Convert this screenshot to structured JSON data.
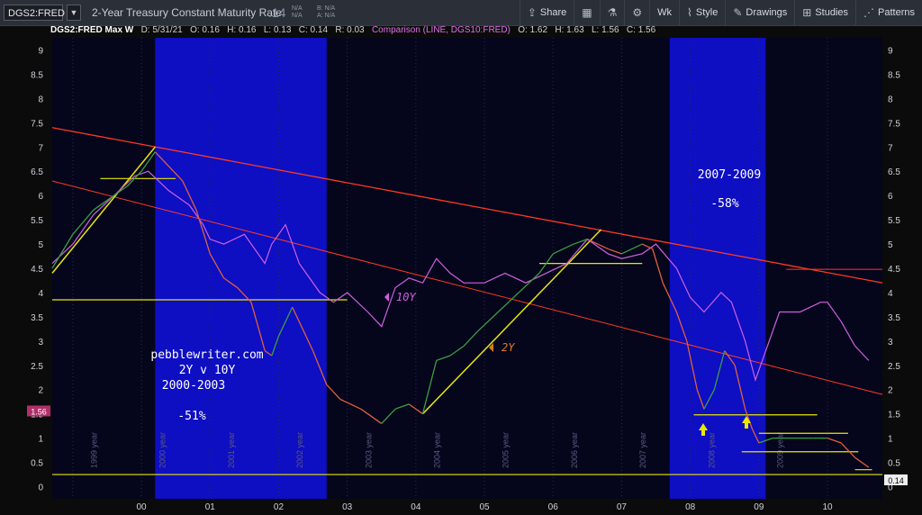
{
  "toolbar": {
    "symbol": "DGS2:FRED",
    "description": "2-Year Treasury Constant Maturity Rate",
    "last": ".14",
    "quote_lines": [
      "N/A",
      "N/A"
    ],
    "quote_lines2": [
      "B: N/A",
      "A: N/A"
    ],
    "buttons": {
      "share": "Share",
      "period": "Wk",
      "style": "Style",
      "drawings": "Drawings",
      "studies": "Studies",
      "patterns": "Patterns"
    }
  },
  "infobar": {
    "main": "DGS2:FRED Max W",
    "date": "D: 5/31/21",
    "open": "O: 0.16",
    "high": "H: 0.16",
    "low": "L: 0.13",
    "close": "C: 0.14",
    "range": "R: 0.03",
    "comparison": "Comparison (LINE, DGS10:FRED)",
    "c_open": "O: 1.62",
    "c_high": "H: 1.63",
    "c_low": "L: 1.56",
    "c_close": "C: 1.56"
  },
  "colors": {
    "background": "#05051c",
    "recession": "#1010e0",
    "trend_red": "#ff3a20",
    "support_yellow": "#e8e800",
    "series_2y": "#e0603a",
    "series_10y": "#d060e0",
    "series_2y_up": "#3aa040"
  },
  "chart_data": {
    "type": "line",
    "title": "",
    "ylim": [
      -0.25,
      9.25
    ],
    "x_ticks": [
      "00",
      "01",
      "02",
      "03",
      "04",
      "05",
      "06",
      "07",
      "08",
      "09",
      "10"
    ],
    "y_ticks": [
      "0",
      "0.5",
      "1",
      "1.5",
      "2",
      "2.5",
      "3",
      "3.5",
      "4",
      "4.5",
      "5",
      "5.5",
      "6",
      "6.5",
      "7",
      "7.5",
      "8",
      "8.5",
      "9"
    ],
    "year_labels": [
      "1999 year",
      "2000 year",
      "2001 year",
      "2002 year",
      "2003 year",
      "2004 year",
      "2005 year",
      "2006 year",
      "2007 year",
      "2008 year",
      "2009 year"
    ],
    "recession_shading": [
      [
        2000.2,
        2002.7
      ],
      [
        2007.7,
        2009.1
      ]
    ],
    "price_badge_left": "1.56",
    "price_badge_right": "0.14",
    "series": [
      {
        "name": "2Y",
        "x": [
          1998.7,
          1999.0,
          1999.3,
          1999.5,
          1999.8,
          2000.0,
          2000.2,
          2000.4,
          2000.6,
          2000.8,
          2001.0,
          2001.2,
          2001.4,
          2001.6,
          2001.8,
          2001.9,
          2002.0,
          2002.2,
          2002.5,
          2002.7,
          2002.9,
          2003.2,
          2003.4,
          2003.5,
          2003.7,
          2003.9,
          2004.1,
          2004.3,
          2004.5,
          2004.7,
          2004.9,
          2005.2,
          2005.5,
          2005.8,
          2006.0,
          2006.3,
          2006.5,
          2006.8,
          2007.0,
          2007.3,
          2007.45,
          2007.6,
          2007.8,
          2007.95,
          2008.1,
          2008.2,
          2008.35,
          2008.5,
          2008.65,
          2008.8,
          2008.9,
          2009.0,
          2009.2,
          2009.5,
          2009.8,
          2010.0,
          2010.2,
          2010.4,
          2010.6
        ],
        "y": [
          4.5,
          5.2,
          5.7,
          5.9,
          6.2,
          6.5,
          6.9,
          6.6,
          6.3,
          5.7,
          4.8,
          4.3,
          4.1,
          3.8,
          2.8,
          2.7,
          3.1,
          3.7,
          2.8,
          2.1,
          1.8,
          1.6,
          1.4,
          1.3,
          1.6,
          1.7,
          1.5,
          2.6,
          2.7,
          2.9,
          3.2,
          3.6,
          4.0,
          4.4,
          4.8,
          5.0,
          5.1,
          4.9,
          4.8,
          5.0,
          4.9,
          4.2,
          3.6,
          3.0,
          2.0,
          1.6,
          2.0,
          2.8,
          2.5,
          1.6,
          1.2,
          0.9,
          1.0,
          1.0,
          1.0,
          1.0,
          0.9,
          0.6,
          0.4
        ]
      },
      {
        "name": "10Y",
        "x": [
          1998.7,
          1999.0,
          1999.3,
          1999.6,
          1999.9,
          2000.1,
          2000.4,
          2000.7,
          2000.9,
          2001.0,
          2001.2,
          2001.5,
          2001.8,
          2001.9,
          2002.1,
          2002.3,
          2002.6,
          2002.8,
          2003.0,
          2003.3,
          2003.5,
          2003.7,
          2003.9,
          2004.1,
          2004.3,
          2004.5,
          2004.7,
          2005.0,
          2005.3,
          2005.6,
          2005.9,
          2006.2,
          2006.5,
          2006.8,
          2007.0,
          2007.3,
          2007.5,
          2007.8,
          2008.0,
          2008.2,
          2008.45,
          2008.6,
          2008.8,
          2008.95,
          2009.1,
          2009.3,
          2009.6,
          2009.9,
          2010.0,
          2010.2,
          2010.4,
          2010.6
        ],
        "y": [
          4.6,
          5.0,
          5.6,
          6.0,
          6.4,
          6.5,
          6.1,
          5.8,
          5.4,
          5.1,
          5.0,
          5.2,
          4.6,
          5.0,
          5.4,
          4.6,
          4.0,
          3.8,
          4.0,
          3.6,
          3.3,
          4.1,
          4.3,
          4.2,
          4.7,
          4.4,
          4.2,
          4.2,
          4.4,
          4.2,
          4.4,
          4.6,
          5.1,
          4.8,
          4.7,
          4.8,
          5.0,
          4.5,
          3.9,
          3.6,
          4.0,
          3.8,
          3.0,
          2.2,
          2.8,
          3.6,
          3.6,
          3.8,
          3.8,
          3.4,
          2.9,
          2.6
        ]
      }
    ],
    "annotations": [
      {
        "text": "pebblewriter.com",
        "color": "#ffffff"
      },
      {
        "text": "2Y v 10Y",
        "color": "#ffffff"
      },
      {
        "text": "2000-2003",
        "color": "#ffffff"
      },
      {
        "text": "-51%",
        "color": "#ffffff"
      },
      {
        "text": "2007-2009",
        "color": "#ffffff"
      },
      {
        "text": "-58%",
        "color": "#ffffff"
      },
      {
        "text": "10Y",
        "color": "#d060e0"
      },
      {
        "text": "2Y",
        "color": "#e07a20"
      }
    ]
  }
}
